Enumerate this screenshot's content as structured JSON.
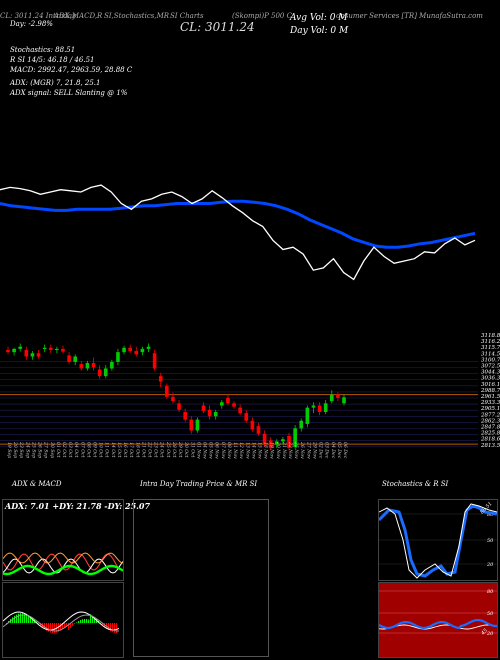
{
  "header": {
    "line1": [
      "CL: 3011.24 Intraday",
      "ADX,MACD,R",
      "SI,Stochastics,MR",
      "SI Charts",
      "(Skompi)",
      "(Skompi)P 500 C",
      "onsumer Services [TR] MunafaSutra.com"
    ],
    "close_big": "CL: 3011.24",
    "line2": "Day: -2.98%",
    "avg_vol": "Avg Vol: 0  M",
    "day_vol": "Day Vol: 0   M",
    "stochastics": "Stochastics: 88.51",
    "rsi": "R              SI 14/5: 46.18 / 46.51",
    "macd": "MACD: 2992.47, 2963.59, 28.88  C",
    "adx": "ADX:                          (MGR) 7, 21.8, 25.1",
    "adx_signal": "ADX  signal: SELL  Slanting @ 1%"
  },
  "chart_data": [
    {
      "type": "line",
      "title": "",
      "series": [
        {
          "values": [
            78,
            76,
            77,
            79,
            82,
            80,
            78,
            79,
            80,
            76,
            74,
            80,
            90,
            95,
            88,
            86,
            82,
            80,
            84,
            90,
            86,
            79,
            85,
            92,
            98,
            105,
            110,
            122,
            130,
            128,
            134,
            148,
            146,
            138,
            150,
            156,
            140,
            128,
            136,
            142,
            140,
            138,
            132,
            133,
            125,
            120,
            126,
            122
          ]
        },
        {
          "values": [
            90,
            92,
            93,
            94,
            95,
            96,
            96,
            95,
            95,
            95,
            95,
            94,
            93,
            92,
            92,
            91,
            90,
            90,
            90,
            90,
            89,
            88,
            88,
            89,
            90,
            92,
            95,
            99,
            104,
            108,
            112,
            116,
            121,
            124,
            127,
            128,
            128,
            127,
            125,
            124,
            122,
            120,
            118,
            116
          ]
        }
      ]
    },
    {
      "type": "bar",
      "title": "",
      "y_ticks": [
        "3118.89",
        "3116.22",
        "3115.7",
        "3114.5",
        "3100.7",
        "3072.51",
        "3044.33",
        "3036.34",
        "3016.14",
        "2988.76",
        "2961.57",
        "2933.38",
        "2905.19",
        "2877.22",
        "2862.35",
        "2847.84",
        "2825.82",
        "2818.63",
        "2813.52"
      ],
      "x_labels": [
        "19 Sep",
        "20 Sep",
        "23 Sep",
        "24 Sep",
        "25 Sep",
        "26 Sep",
        "27 Sep",
        "30 Sep",
        "01 Oct",
        "02 Oct",
        "03 Oct",
        "04 Oct",
        "07 Oct",
        "08 Oct",
        "09 Oct",
        "10 Oct",
        "11 Oct",
        "14 Oct",
        "15 Oct",
        "16 Oct",
        "17 Oct",
        "18 Oct",
        "21 Oct",
        "22 Oct",
        "23 Oct",
        "24 Oct",
        "25 Oct",
        "28 Oct",
        "29 Oct",
        "30 Oct",
        "31 Oct",
        "01 Nov",
        "04 Nov",
        "05 Nov",
        "06 Nov",
        "07 Nov",
        "08 Nov",
        "11 Nov",
        "12 Nov",
        "13 Nov",
        "14 Nov",
        "15 Nov",
        "18 Nov",
        "19 Nov",
        "20 Nov",
        "21 Nov",
        "22 Nov",
        "25 Nov",
        "26 Nov",
        "27 Nov",
        "29 Nov",
        "02 Dec",
        "03 Dec",
        "04 Dec",
        "05 Dec",
        "06 Dec"
      ],
      "candles": [
        {
          "o": 3098,
          "h": 3104,
          "l": 3090,
          "c": 3094,
          "up": false
        },
        {
          "o": 3094,
          "h": 3102,
          "l": 3088,
          "c": 3100,
          "up": true
        },
        {
          "o": 3100,
          "h": 3110,
          "l": 3095,
          "c": 3104,
          "up": true
        },
        {
          "o": 3098,
          "h": 3104,
          "l": 3080,
          "c": 3086,
          "up": false
        },
        {
          "o": 3086,
          "h": 3096,
          "l": 3080,
          "c": 3092,
          "up": true
        },
        {
          "o": 3092,
          "h": 3098,
          "l": 3082,
          "c": 3086,
          "up": false
        },
        {
          "o": 3100,
          "h": 3108,
          "l": 3094,
          "c": 3102,
          "up": true
        },
        {
          "o": 3102,
          "h": 3108,
          "l": 3092,
          "c": 3098,
          "up": false
        },
        {
          "o": 3098,
          "h": 3104,
          "l": 3092,
          "c": 3100,
          "up": true
        },
        {
          "o": 3100,
          "h": 3106,
          "l": 3092,
          "c": 3095,
          "up": false
        },
        {
          "o": 3088,
          "h": 3094,
          "l": 3072,
          "c": 3076,
          "up": false
        },
        {
          "o": 3076,
          "h": 3090,
          "l": 3070,
          "c": 3086,
          "up": true
        },
        {
          "o": 3072,
          "h": 3078,
          "l": 3060,
          "c": 3064,
          "up": false
        },
        {
          "o": 3064,
          "h": 3078,
          "l": 3060,
          "c": 3074,
          "up": true
        },
        {
          "o": 3074,
          "h": 3084,
          "l": 3060,
          "c": 3066,
          "up": false
        },
        {
          "o": 3062,
          "h": 3070,
          "l": 3045,
          "c": 3050,
          "up": false
        },
        {
          "o": 3050,
          "h": 3070,
          "l": 3046,
          "c": 3064,
          "up": true
        },
        {
          "o": 3064,
          "h": 3080,
          "l": 3060,
          "c": 3076,
          "up": true
        },
        {
          "o": 3076,
          "h": 3100,
          "l": 3070,
          "c": 3094,
          "up": true
        },
        {
          "o": 3094,
          "h": 3106,
          "l": 3090,
          "c": 3102,
          "up": true
        },
        {
          "o": 3102,
          "h": 3108,
          "l": 3092,
          "c": 3096,
          "up": false
        },
        {
          "o": 3096,
          "h": 3104,
          "l": 3086,
          "c": 3090,
          "up": false
        },
        {
          "o": 3094,
          "h": 3104,
          "l": 3088,
          "c": 3100,
          "up": true
        },
        {
          "o": 3100,
          "h": 3110,
          "l": 3094,
          "c": 3104,
          "up": true
        },
        {
          "o": 3092,
          "h": 3098,
          "l": 3060,
          "c": 3064,
          "up": false
        },
        {
          "o": 3050,
          "h": 3056,
          "l": 3030,
          "c": 3040,
          "up": false
        },
        {
          "o": 3032,
          "h": 3036,
          "l": 3008,
          "c": 3012,
          "up": false
        },
        {
          "o": 3012,
          "h": 3020,
          "l": 3000,
          "c": 3004,
          "up": false
        },
        {
          "o": 3000,
          "h": 3006,
          "l": 2984,
          "c": 2988,
          "up": false
        },
        {
          "o": 2984,
          "h": 2990,
          "l": 2966,
          "c": 2970,
          "up": false
        },
        {
          "o": 2970,
          "h": 2976,
          "l": 2944,
          "c": 2950,
          "up": false
        },
        {
          "o": 2950,
          "h": 2974,
          "l": 2946,
          "c": 2970,
          "up": true
        },
        {
          "o": 2996,
          "h": 3002,
          "l": 2982,
          "c": 2986,
          "up": false
        },
        {
          "o": 2988,
          "h": 2996,
          "l": 2970,
          "c": 2976,
          "up": false
        },
        {
          "o": 2976,
          "h": 2988,
          "l": 2970,
          "c": 2984,
          "up": true
        },
        {
          "o": 2996,
          "h": 3006,
          "l": 2990,
          "c": 3002,
          "up": true
        },
        {
          "o": 3010,
          "h": 3016,
          "l": 2996,
          "c": 3000,
          "up": false
        },
        {
          "o": 3000,
          "h": 3004,
          "l": 2990,
          "c": 2994,
          "up": false
        },
        {
          "o": 2992,
          "h": 2998,
          "l": 2978,
          "c": 2982,
          "up": false
        },
        {
          "o": 2982,
          "h": 2988,
          "l": 2964,
          "c": 2968,
          "up": false
        },
        {
          "o": 2968,
          "h": 2974,
          "l": 2948,
          "c": 2952,
          "up": false
        },
        {
          "o": 2958,
          "h": 2964,
          "l": 2940,
          "c": 2944,
          "up": false
        },
        {
          "o": 2944,
          "h": 2950,
          "l": 2920,
          "c": 2926,
          "up": false
        },
        {
          "o": 2932,
          "h": 2938,
          "l": 2914,
          "c": 2918,
          "up": false
        },
        {
          "o": 2924,
          "h": 2934,
          "l": 2918,
          "c": 2930,
          "up": true
        },
        {
          "o": 2930,
          "h": 2938,
          "l": 2924,
          "c": 2934,
          "up": true
        },
        {
          "o": 2940,
          "h": 2946,
          "l": 2914,
          "c": 2918,
          "up": false
        },
        {
          "o": 2920,
          "h": 2960,
          "l": 2916,
          "c": 2954,
          "up": true
        },
        {
          "o": 2954,
          "h": 2972,
          "l": 2948,
          "c": 2968,
          "up": true
        },
        {
          "o": 2962,
          "h": 2996,
          "l": 2956,
          "c": 2992,
          "up": true
        },
        {
          "o": 2992,
          "h": 3002,
          "l": 2982,
          "c": 2996,
          "up": true
        },
        {
          "o": 2996,
          "h": 3002,
          "l": 2978,
          "c": 2984,
          "up": false
        },
        {
          "o": 2984,
          "h": 3006,
          "l": 2980,
          "c": 3000,
          "up": true
        },
        {
          "o": 3004,
          "h": 3024,
          "l": 3000,
          "c": 3016,
          "up": true
        },
        {
          "o": 3016,
          "h": 3020,
          "l": 3004,
          "c": 3010,
          "up": false
        },
        {
          "o": 3000,
          "h": 3016,
          "l": 2996,
          "c": 3011,
          "up": true
        }
      ]
    }
  ],
  "panels": {
    "adx_title": "ADX  & MACD",
    "adx_values": "ADX: 7.01  +DY: 21.78  -DY: 25.07",
    "intraday_title": "Intra  Day Trading Price  & MR                  SI",
    "stoch_title": "Stochastics & R                   SI",
    "stoch_ticks": [
      "80",
      "50",
      "20"
    ],
    "mrsi_ticks": [
      "80",
      "50",
      "20"
    ],
    "stoch_value_tag": "88.51",
    "mrsi_value_tag": "45"
  },
  "colors": {
    "up": "#00cc00",
    "down": "#ff0000",
    "ma": "#0047ff",
    "price": "#ffffff",
    "level_line": "#b35b00",
    "grid": "#1e1e5a",
    "mrsi_bg": "#a00000",
    "macd_green": "#00ff00",
    "macd_red": "#ff0000"
  }
}
